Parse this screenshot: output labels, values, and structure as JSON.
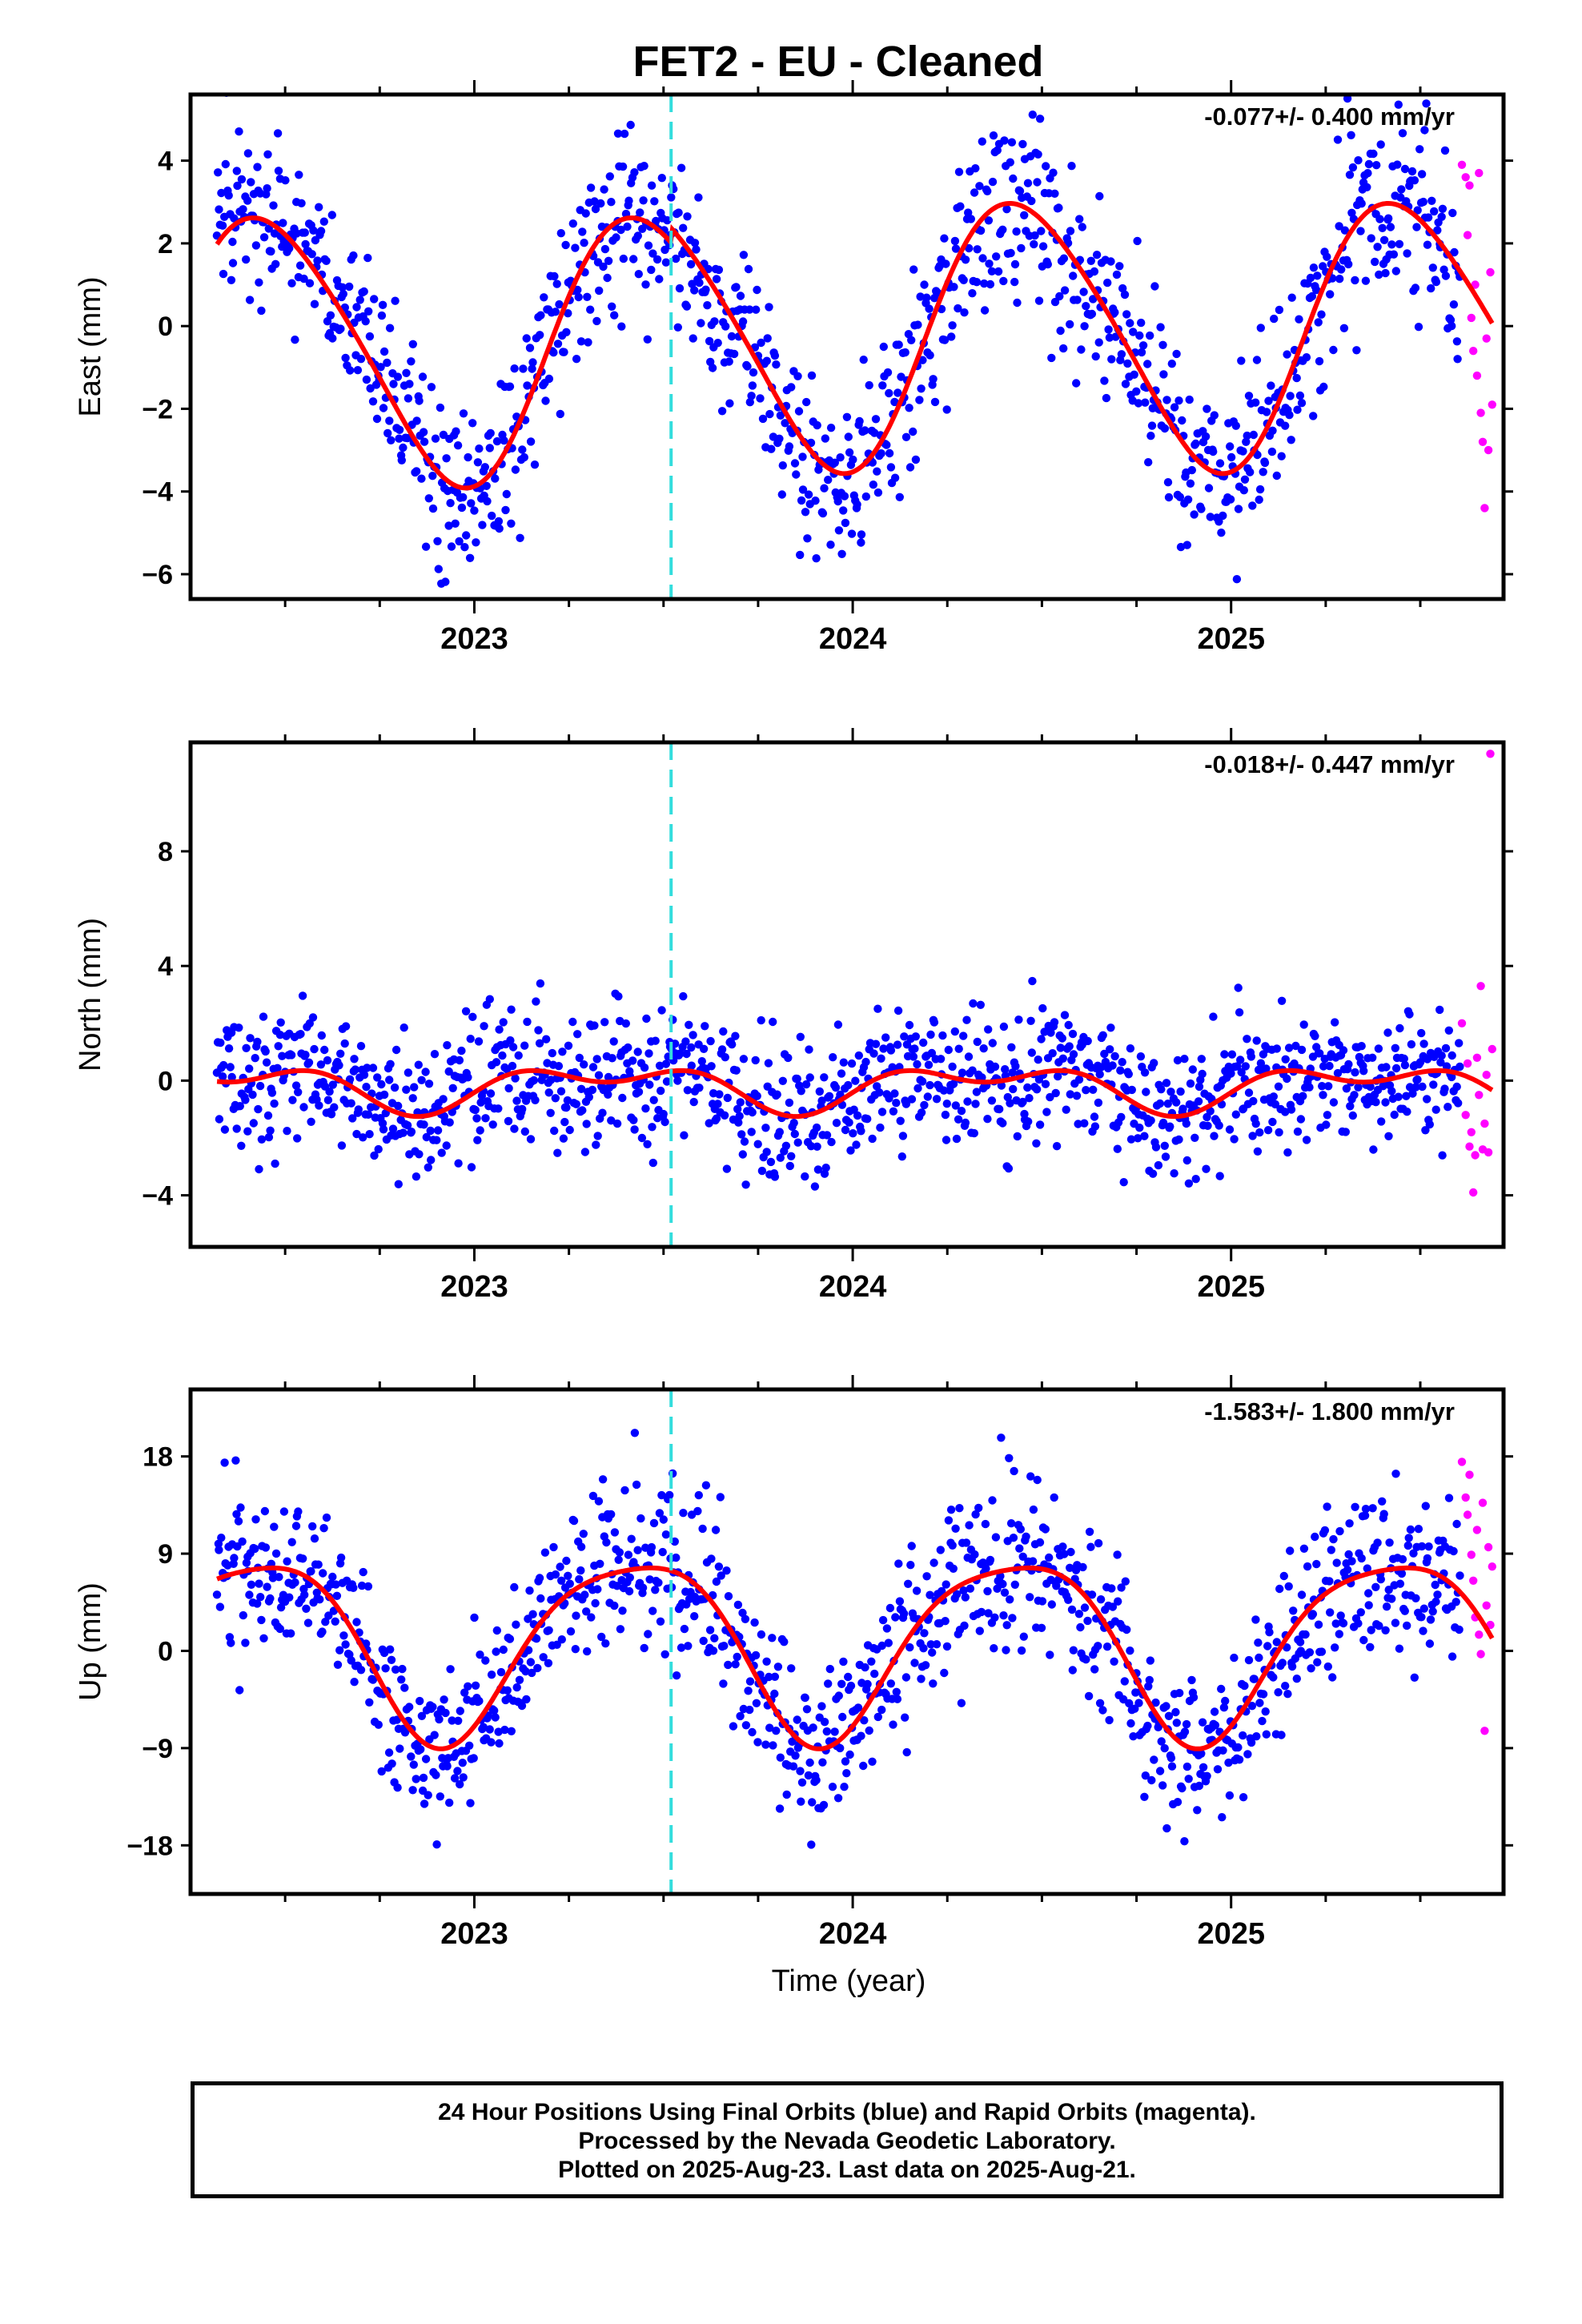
{
  "title": "FET2  - EU - Cleaned",
  "xlabel": "Time (year)",
  "colors": {
    "final": "#0000ff",
    "rapid": "#ff00ff",
    "model": "#ff0000",
    "event": "#33dddd",
    "axis": "#000000"
  },
  "footer": [
    "24 Hour Positions Using Final Orbits (blue) and Rapid Orbits (magenta).",
    "Processed by the Nevada Geodetic Laboratory.",
    "Plotted on 2025-Aug-23. Last data on 2025-Aug-21."
  ],
  "chart_data": [
    {
      "type": "scatter",
      "ylabel": "East (mm)",
      "rate": "-0.077+/- 0.400 mm/yr",
      "xlim": [
        2022.25,
        2025.72
      ],
      "ylim": [
        -6.6,
        5.6
      ],
      "yticks": [
        -6,
        -4,
        -2,
        0,
        2,
        4
      ],
      "xticks": [
        2023,
        2024,
        2025
      ],
      "event_line": 2023.52,
      "model": {
        "offset": -0.55,
        "a1": 3.2,
        "t1": 2022.45,
        "a2": 0.35,
        "t2": 2022.3,
        "step": 0.35
      },
      "noise": 1.1,
      "rapid_points": [
        [
          2025.61,
          3.9
        ],
        [
          2025.62,
          3.6
        ],
        [
          2025.625,
          2.2
        ],
        [
          2025.63,
          3.4
        ],
        [
          2025.635,
          0.2
        ],
        [
          2025.64,
          -0.6
        ],
        [
          2025.645,
          1.0
        ],
        [
          2025.65,
          -1.2
        ],
        [
          2025.655,
          3.7
        ],
        [
          2025.66,
          -2.1
        ],
        [
          2025.665,
          -2.8
        ],
        [
          2025.67,
          -4.4
        ],
        [
          2025.675,
          -0.3
        ],
        [
          2025.68,
          -3.0
        ],
        [
          2025.685,
          1.3
        ],
        [
          2025.69,
          -1.9
        ]
      ]
    },
    {
      "type": "scatter",
      "ylabel": "North (mm)",
      "rate": "-0.018+/- 0.447 mm/yr",
      "xlim": [
        2022.25,
        2025.72
      ],
      "ylim": [
        -5.8,
        11.8
      ],
      "yticks": [
        -4,
        0,
        4,
        8
      ],
      "xticks": [
        2023,
        2024,
        2025
      ],
      "event_line": 2023.52,
      "model": {
        "offset": -0.2,
        "a1": 0.6,
        "t1": 2022.35,
        "a2": 0.45,
        "t2": 2022.1,
        "step": 0.0
      },
      "noise": 1.15,
      "rapid_points": [
        [
          2025.61,
          2.0
        ],
        [
          2025.62,
          -1.2
        ],
        [
          2025.625,
          0.6
        ],
        [
          2025.63,
          -2.3
        ],
        [
          2025.635,
          -1.8
        ],
        [
          2025.64,
          -3.9
        ],
        [
          2025.645,
          -2.6
        ],
        [
          2025.65,
          0.8
        ],
        [
          2025.655,
          -0.5
        ],
        [
          2025.66,
          3.3
        ],
        [
          2025.665,
          -2.4
        ],
        [
          2025.67,
          -1.5
        ],
        [
          2025.675,
          0.2
        ],
        [
          2025.68,
          -2.5
        ],
        [
          2025.685,
          11.4
        ],
        [
          2025.69,
          1.1
        ]
      ]
    },
    {
      "type": "scatter",
      "ylabel": "Up (mm)",
      "rate": "-1.583+/- 1.800 mm/yr",
      "xlim": [
        2022.25,
        2025.72
      ],
      "ylim": [
        -22.5,
        24.2
      ],
      "yticks": [
        -18,
        -9,
        0,
        9,
        18
      ],
      "xticks": [
        2023,
        2024,
        2025
      ],
      "event_line": 2023.52,
      "model": {
        "offset": 0.8,
        "a1": 8.3,
        "t1": 2022.42,
        "a2": 1.6,
        "t2": 2022.15,
        "step": 0.0
      },
      "noise": 3.6,
      "rapid_points": [
        [
          2025.61,
          17.5
        ],
        [
          2025.62,
          14.2
        ],
        [
          2025.625,
          12.6
        ],
        [
          2025.63,
          16.3
        ],
        [
          2025.635,
          8.9
        ],
        [
          2025.64,
          6.5
        ],
        [
          2025.645,
          3.1
        ],
        [
          2025.65,
          11.2
        ],
        [
          2025.655,
          1.5
        ],
        [
          2025.66,
          -0.3
        ],
        [
          2025.665,
          13.7
        ],
        [
          2025.67,
          -7.4
        ],
        [
          2025.675,
          4.2
        ],
        [
          2025.68,
          9.6
        ],
        [
          2025.685,
          2.4
        ],
        [
          2025.69,
          7.8
        ]
      ]
    }
  ]
}
